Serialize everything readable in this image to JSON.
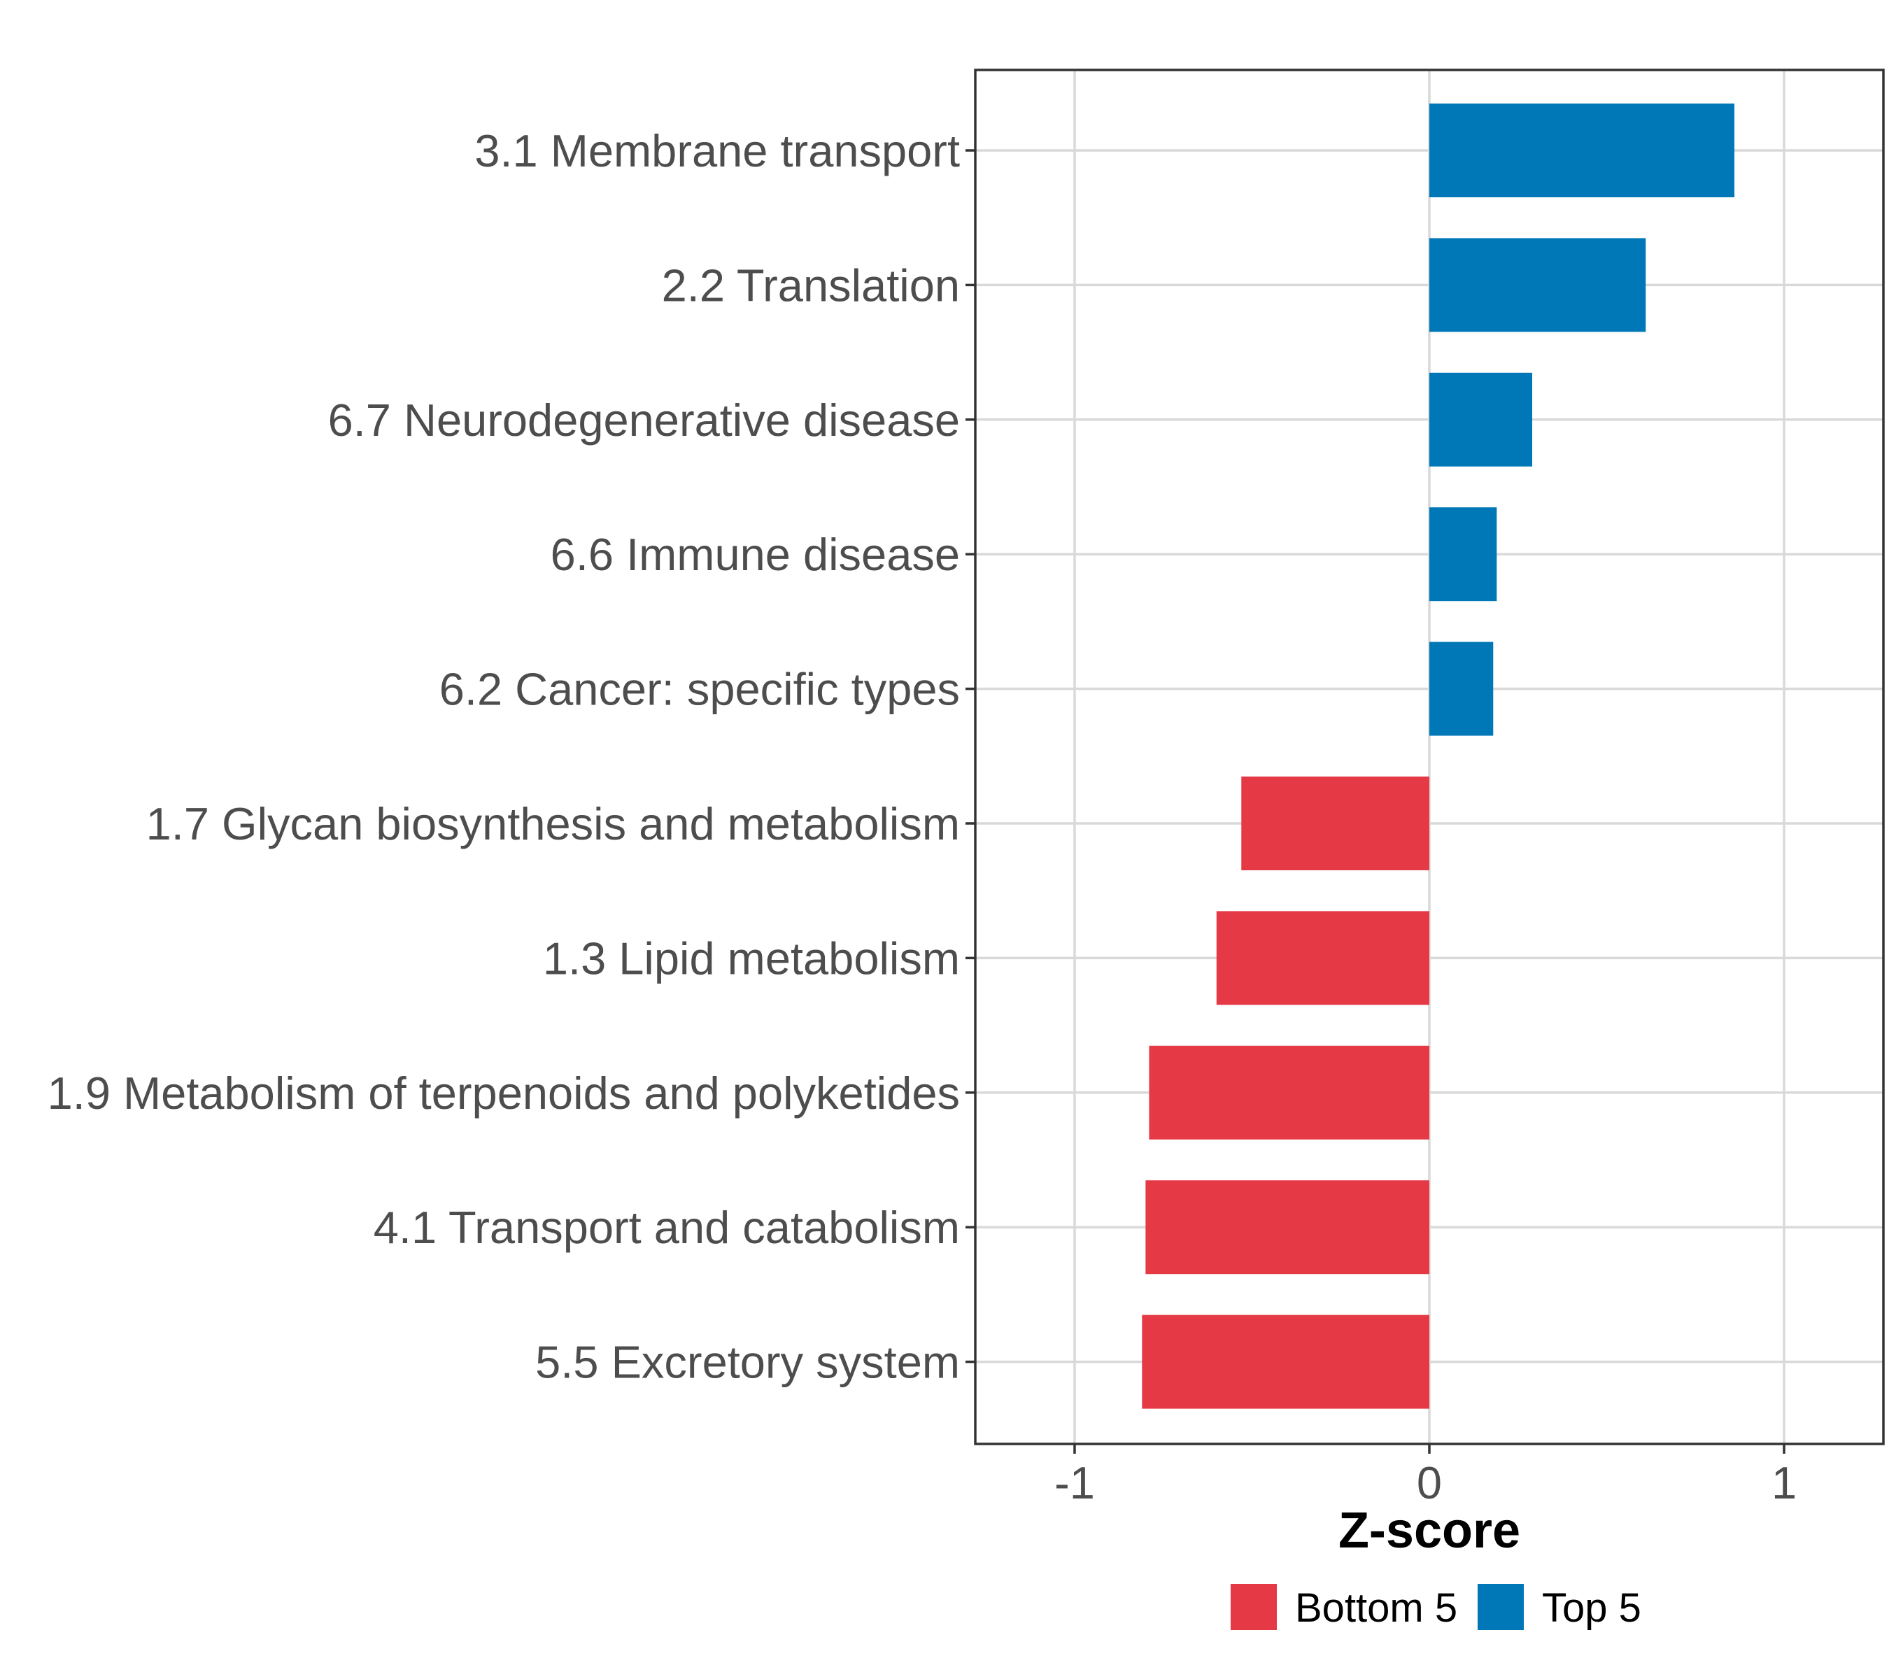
{
  "chart_data": {
    "type": "bar",
    "orientation": "horizontal",
    "title": "",
    "xlabel": "Z-score",
    "ylabel": "",
    "xlim": [
      -1.28,
      1.28
    ],
    "x_ticks": [
      -1,
      0,
      1
    ],
    "x_tick_labels": [
      "-1",
      "0",
      "1"
    ],
    "grid": true,
    "legend_position": "bottom",
    "categories": [
      "3.1 Membrane transport",
      "2.2 Translation",
      "6.7 Neurodegenerative disease",
      "6.6 Immune disease",
      "6.2 Cancer: specific types",
      "1.7 Glycan biosynthesis and metabolism",
      "1.3 Lipid metabolism",
      "1.9 Metabolism of terpenoids and polyketides",
      "4.1 Transport and catabolism",
      "5.5 Excretory system"
    ],
    "values": [
      0.86,
      0.61,
      0.29,
      0.19,
      0.18,
      -0.53,
      -0.6,
      -0.79,
      -0.8,
      -0.81
    ],
    "groups": [
      "Top 5",
      "Top 5",
      "Top 5",
      "Top 5",
      "Top 5",
      "Bottom 5",
      "Bottom 5",
      "Bottom 5",
      "Bottom 5",
      "Bottom 5"
    ],
    "legend": [
      {
        "name": "Bottom 5",
        "color": "#e63946"
      },
      {
        "name": "Top 5",
        "color": "#0077b6"
      }
    ]
  }
}
